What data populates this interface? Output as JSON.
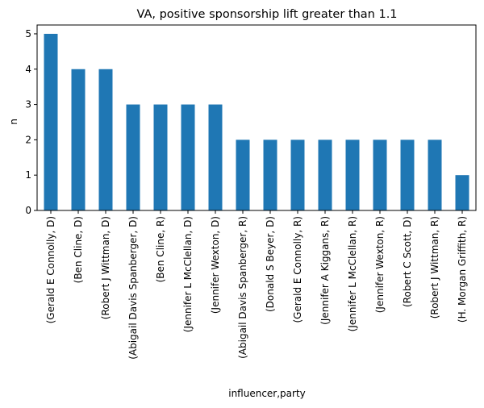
{
  "chart_data": {
    "type": "bar",
    "title": "VA, positive sponsorship lift greater than 1.1",
    "xlabel": "influencer,party",
    "ylabel": "n",
    "categories": [
      "(Gerald E Connolly, D)",
      "(Ben Cline, D)",
      "(Robert J Wittman, D)",
      "(Abigail Davis Spanberger, D)",
      "(Ben Cline, R)",
      "(Jennifer L McClellan, D)",
      "(Jennifer Wexton, D)",
      "(Abigail Davis Spanberger, R)",
      "(Donald S Beyer, D)",
      "(Gerald E Connolly, R)",
      "(Jennifer A Kiggans, R)",
      "(Jennifer L McClellan, R)",
      "(Jennifer Wexton, R)",
      "(Robert C Scott, D)",
      "(Robert J Wittman, R)",
      "(H. Morgan Griffith, R)"
    ],
    "values": [
      5,
      4,
      4,
      3,
      3,
      3,
      3,
      2,
      2,
      2,
      2,
      2,
      2,
      2,
      2,
      1
    ],
    "ylim": [
      0,
      5.25
    ],
    "yticks": [
      0,
      1,
      2,
      3,
      4,
      5
    ],
    "grid": false,
    "bar_color": "#1f77b4"
  }
}
